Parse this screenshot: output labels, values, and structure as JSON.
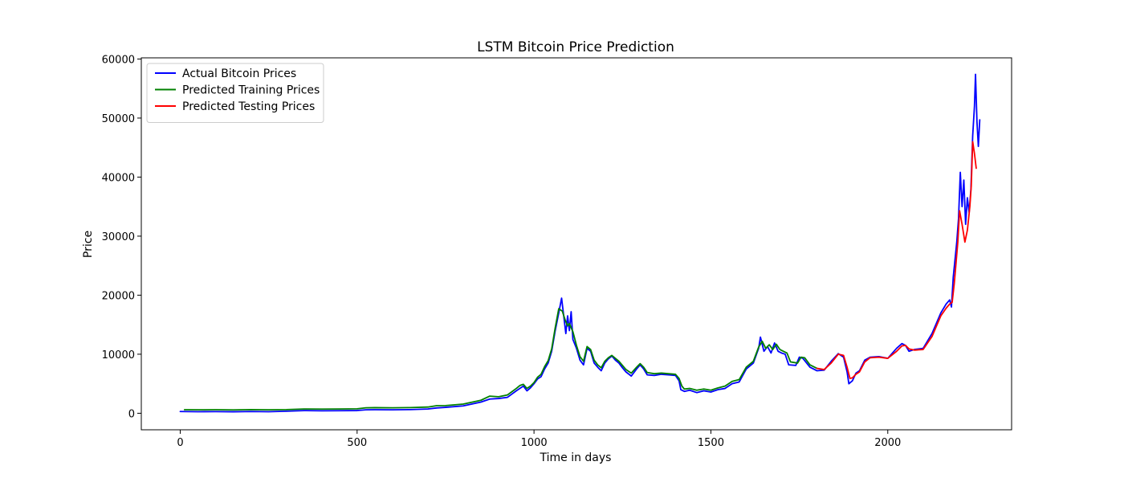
{
  "chart_data": {
    "type": "line",
    "title": "LSTM Bitcoin Price Prediction",
    "xlabel": "Time in days",
    "ylabel": "Price",
    "xlim": [
      -110,
      2350
    ],
    "ylim": [
      -2800,
      60200
    ],
    "xticks": [
      0,
      500,
      1000,
      1500,
      2000
    ],
    "yticks": [
      0,
      10000,
      20000,
      30000,
      40000,
      50000,
      60000
    ],
    "grid": false,
    "legend_position": "top-left",
    "series": [
      {
        "name": "Actual Bitcoin Prices",
        "color": "#0000ff",
        "points": [
          [
            0,
            300
          ],
          [
            50,
            260
          ],
          [
            100,
            280
          ],
          [
            150,
            250
          ],
          [
            200,
            300
          ],
          [
            250,
            260
          ],
          [
            300,
            350
          ],
          [
            350,
            450
          ],
          [
            400,
            420
          ],
          [
            450,
            430
          ],
          [
            500,
            460
          ],
          [
            525,
            580
          ],
          [
            550,
            600
          ],
          [
            600,
            590
          ],
          [
            650,
            620
          ],
          [
            700,
            720
          ],
          [
            725,
            900
          ],
          [
            750,
            1000
          ],
          [
            800,
            1250
          ],
          [
            850,
            1900
          ],
          [
            875,
            2400
          ],
          [
            900,
            2500
          ],
          [
            925,
            2700
          ],
          [
            950,
            3800
          ],
          [
            960,
            4200
          ],
          [
            970,
            4600
          ],
          [
            980,
            3800
          ],
          [
            990,
            4300
          ],
          [
            1000,
            5000
          ],
          [
            1010,
            5800
          ],
          [
            1020,
            6200
          ],
          [
            1030,
            7500
          ],
          [
            1040,
            8500
          ],
          [
            1050,
            10500
          ],
          [
            1060,
            14000
          ],
          [
            1070,
            17000
          ],
          [
            1078,
            19500
          ],
          [
            1085,
            16000
          ],
          [
            1090,
            13500
          ],
          [
            1095,
            16500
          ],
          [
            1100,
            14000
          ],
          [
            1105,
            17200
          ],
          [
            1110,
            12500
          ],
          [
            1120,
            11000
          ],
          [
            1130,
            9000
          ],
          [
            1140,
            8200
          ],
          [
            1150,
            11000
          ],
          [
            1160,
            10500
          ],
          [
            1170,
            8500
          ],
          [
            1180,
            7800
          ],
          [
            1190,
            7200
          ],
          [
            1200,
            8500
          ],
          [
            1210,
            9200
          ],
          [
            1220,
            9700
          ],
          [
            1230,
            9000
          ],
          [
            1240,
            8500
          ],
          [
            1250,
            7700
          ],
          [
            1260,
            7000
          ],
          [
            1275,
            6300
          ],
          [
            1290,
            7500
          ],
          [
            1300,
            8200
          ],
          [
            1310,
            7500
          ],
          [
            1320,
            6500
          ],
          [
            1340,
            6400
          ],
          [
            1360,
            6600
          ],
          [
            1380,
            6500
          ],
          [
            1400,
            6400
          ],
          [
            1410,
            5500
          ],
          [
            1415,
            4000
          ],
          [
            1425,
            3700
          ],
          [
            1440,
            3900
          ],
          [
            1460,
            3500
          ],
          [
            1480,
            3800
          ],
          [
            1500,
            3600
          ],
          [
            1520,
            4000
          ],
          [
            1540,
            4200
          ],
          [
            1560,
            5000
          ],
          [
            1580,
            5300
          ],
          [
            1600,
            7500
          ],
          [
            1620,
            8500
          ],
          [
            1635,
            11000
          ],
          [
            1640,
            12900
          ],
          [
            1650,
            10500
          ],
          [
            1660,
            11300
          ],
          [
            1670,
            10200
          ],
          [
            1680,
            11900
          ],
          [
            1690,
            10500
          ],
          [
            1700,
            10200
          ],
          [
            1710,
            10000
          ],
          [
            1720,
            8200
          ],
          [
            1740,
            8100
          ],
          [
            1750,
            9500
          ],
          [
            1760,
            9300
          ],
          [
            1780,
            7800
          ],
          [
            1800,
            7200
          ],
          [
            1820,
            7300
          ],
          [
            1840,
            8800
          ],
          [
            1860,
            10100
          ],
          [
            1875,
            9500
          ],
          [
            1885,
            7000
          ],
          [
            1890,
            5000
          ],
          [
            1900,
            5500
          ],
          [
            1910,
            6800
          ],
          [
            1920,
            7200
          ],
          [
            1935,
            9000
          ],
          [
            1950,
            9500
          ],
          [
            1975,
            9600
          ],
          [
            2000,
            9300
          ],
          [
            2025,
            11000
          ],
          [
            2040,
            11800
          ],
          [
            2050,
            11500
          ],
          [
            2060,
            10500
          ],
          [
            2075,
            10800
          ],
          [
            2100,
            11000
          ],
          [
            2125,
            13500
          ],
          [
            2150,
            17000
          ],
          [
            2165,
            18500
          ],
          [
            2175,
            19200
          ],
          [
            2180,
            18000
          ],
          [
            2185,
            23000
          ],
          [
            2195,
            29000
          ],
          [
            2200,
            33000
          ],
          [
            2205,
            40800
          ],
          [
            2210,
            35000
          ],
          [
            2215,
            39500
          ],
          [
            2220,
            32000
          ],
          [
            2225,
            36500
          ],
          [
            2230,
            34000
          ],
          [
            2235,
            38000
          ],
          [
            2240,
            47000
          ],
          [
            2245,
            52000
          ],
          [
            2248,
            57400
          ],
          [
            2252,
            49500
          ],
          [
            2256,
            45200
          ],
          [
            2260,
            49700
          ]
        ]
      },
      {
        "name": "Predicted Training Prices",
        "color": "#008000",
        "points": [
          [
            12,
            600
          ],
          [
            50,
            580
          ],
          [
            100,
            600
          ],
          [
            150,
            570
          ],
          [
            200,
            620
          ],
          [
            250,
            590
          ],
          [
            300,
            620
          ],
          [
            350,
            720
          ],
          [
            400,
            700
          ],
          [
            450,
            720
          ],
          [
            500,
            760
          ],
          [
            525,
            930
          ],
          [
            550,
            950
          ],
          [
            600,
            920
          ],
          [
            650,
            960
          ],
          [
            700,
            1050
          ],
          [
            725,
            1280
          ],
          [
            750,
            1300
          ],
          [
            800,
            1550
          ],
          [
            850,
            2200
          ],
          [
            875,
            2900
          ],
          [
            900,
            2800
          ],
          [
            925,
            3100
          ],
          [
            950,
            4200
          ],
          [
            960,
            4700
          ],
          [
            970,
            4900
          ],
          [
            980,
            4200
          ],
          [
            990,
            4600
          ],
          [
            1000,
            5200
          ],
          [
            1010,
            6100
          ],
          [
            1020,
            6600
          ],
          [
            1030,
            7900
          ],
          [
            1040,
            8900
          ],
          [
            1050,
            10900
          ],
          [
            1060,
            14500
          ],
          [
            1070,
            17700
          ],
          [
            1080,
            17300
          ],
          [
            1088,
            15800
          ],
          [
            1095,
            14800
          ],
          [
            1100,
            15200
          ],
          [
            1110,
            13800
          ],
          [
            1120,
            11500
          ],
          [
            1130,
            9600
          ],
          [
            1140,
            8800
          ],
          [
            1150,
            11300
          ],
          [
            1160,
            10800
          ],
          [
            1170,
            9000
          ],
          [
            1180,
            8200
          ],
          [
            1190,
            7700
          ],
          [
            1200,
            8800
          ],
          [
            1210,
            9400
          ],
          [
            1220,
            9800
          ],
          [
            1230,
            9300
          ],
          [
            1240,
            8800
          ],
          [
            1250,
            8100
          ],
          [
            1260,
            7400
          ],
          [
            1275,
            6800
          ],
          [
            1290,
            7800
          ],
          [
            1300,
            8400
          ],
          [
            1310,
            7800
          ],
          [
            1320,
            6900
          ],
          [
            1340,
            6700
          ],
          [
            1360,
            6800
          ],
          [
            1380,
            6700
          ],
          [
            1400,
            6600
          ],
          [
            1410,
            5900
          ],
          [
            1418,
            4600
          ],
          [
            1425,
            4100
          ],
          [
            1440,
            4200
          ],
          [
            1460,
            3900
          ],
          [
            1480,
            4100
          ],
          [
            1500,
            3900
          ],
          [
            1520,
            4300
          ],
          [
            1540,
            4600
          ],
          [
            1560,
            5400
          ],
          [
            1580,
            5700
          ],
          [
            1600,
            7800
          ],
          [
            1620,
            8800
          ],
          [
            1635,
            11200
          ],
          [
            1645,
            12200
          ],
          [
            1655,
            11000
          ],
          [
            1665,
            11600
          ],
          [
            1675,
            10800
          ],
          [
            1685,
            11700
          ],
          [
            1695,
            10800
          ],
          [
            1705,
            10500
          ],
          [
            1715,
            10200
          ],
          [
            1725,
            8700
          ],
          [
            1745,
            8500
          ],
          [
            1755,
            9500
          ],
          [
            1765,
            9400
          ],
          [
            1780,
            8200
          ],
          [
            1800,
            7600
          ]
        ]
      },
      {
        "name": "Predicted Testing Prices",
        "color": "#ff0000",
        "points": [
          [
            1800,
            7600
          ],
          [
            1820,
            7400
          ],
          [
            1840,
            8500
          ],
          [
            1860,
            10000
          ],
          [
            1875,
            9800
          ],
          [
            1885,
            7800
          ],
          [
            1893,
            5900
          ],
          [
            1900,
            6000
          ],
          [
            1910,
            6600
          ],
          [
            1920,
            7000
          ],
          [
            1935,
            8700
          ],
          [
            1950,
            9400
          ],
          [
            1975,
            9500
          ],
          [
            2000,
            9300
          ],
          [
            2025,
            10500
          ],
          [
            2040,
            11400
          ],
          [
            2050,
            11500
          ],
          [
            2060,
            10900
          ],
          [
            2075,
            10700
          ],
          [
            2100,
            10800
          ],
          [
            2125,
            13000
          ],
          [
            2150,
            16500
          ],
          [
            2165,
            17800
          ],
          [
            2175,
            18500
          ],
          [
            2182,
            18800
          ],
          [
            2188,
            22000
          ],
          [
            2198,
            29000
          ],
          [
            2203,
            34300
          ],
          [
            2210,
            32000
          ],
          [
            2218,
            29000
          ],
          [
            2225,
            31000
          ],
          [
            2232,
            35000
          ],
          [
            2236,
            38500
          ],
          [
            2240,
            46000
          ],
          [
            2245,
            44000
          ],
          [
            2250,
            41500
          ]
        ]
      }
    ]
  }
}
